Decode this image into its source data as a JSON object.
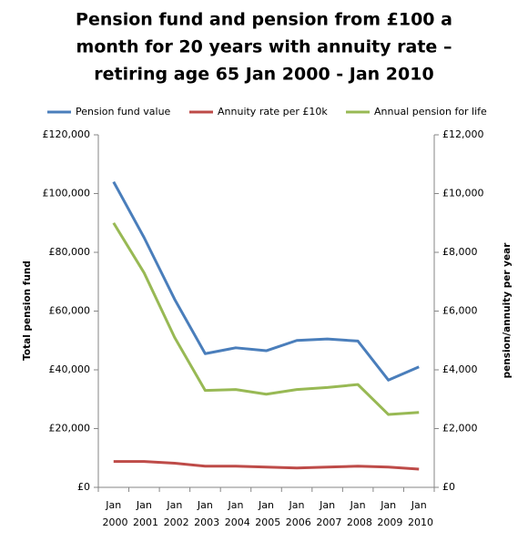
{
  "chart_data": {
    "type": "line",
    "title": [
      "Pension fund and pension from £100 a",
      "month for 20 years with annuity rate –",
      "retiring age 65 Jan 2000 - Jan 2010"
    ],
    "categories": [
      "Jan 2000",
      "Jan 2001",
      "Jan 2002",
      "Jan 2003",
      "Jan 2004",
      "Jan 2005",
      "Jan 2006",
      "Jan 2007",
      "Jan 2008",
      "Jan 2009",
      "Jan 2010"
    ],
    "series": [
      {
        "name": "Pension fund value",
        "color": "#4a7ebb",
        "values": [
          104000,
          85000,
          64000,
          45500,
          47500,
          46500,
          50000,
          50500,
          49800,
          36500,
          41000
        ]
      },
      {
        "name": "Annuity rate per £10k",
        "color": "#be4b48",
        "axis": "y2",
        "values": [
          880,
          880,
          820,
          720,
          720,
          690,
          660,
          690,
          720,
          690,
          620
        ]
      },
      {
        "name": "Annual pension for life",
        "color": "#98b954",
        "axis": "y2",
        "values": [
          9000,
          7300,
          5100,
          3300,
          3330,
          3170,
          3330,
          3400,
          3500,
          2480,
          2550
        ]
      }
    ],
    "y_label": "Total pension fund",
    "y2_label": "pension/annuity per year",
    "ylim": [
      0,
      120000
    ],
    "yticks": [
      {
        "value": 0,
        "label": "£0"
      },
      {
        "value": 20000,
        "label": "£20,000"
      },
      {
        "value": 40000,
        "label": "£40,000"
      },
      {
        "value": 60000,
        "label": "£60,000"
      },
      {
        "value": 80000,
        "label": "£80,000"
      },
      {
        "value": 100000,
        "label": "£100,000"
      },
      {
        "value": 120000,
        "label": "£120,000"
      }
    ],
    "y2lim": [
      0,
      12000
    ],
    "y2ticks": [
      {
        "value": 0,
        "label": "£0"
      },
      {
        "value": 2000,
        "label": "£2,000"
      },
      {
        "value": 4000,
        "label": "£4,000"
      },
      {
        "value": 6000,
        "label": "£6,000"
      },
      {
        "value": 8000,
        "label": "£8,000"
      },
      {
        "value": 10000,
        "label": "£10,000"
      },
      {
        "value": 12000,
        "label": "£12,000"
      }
    ],
    "legend": "top",
    "grid": false
  }
}
